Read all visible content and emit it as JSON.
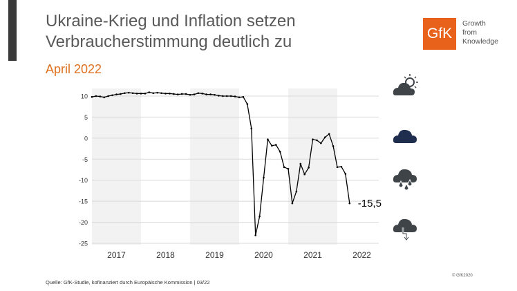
{
  "header": {
    "title_line1": "Ukraine-Krieg und Inflation setzen",
    "title_line2": "Verbraucherstimmung deutlich zu",
    "subtitle": "April 2022"
  },
  "logo": {
    "mark": "GfK",
    "tagline": [
      "Growth",
      "from",
      "Knowledge"
    ],
    "color": "#e8621c"
  },
  "icons": [
    "sun-cloud-icon",
    "cloud-icon",
    "rain-cloud-icon",
    "lightning-cloud-icon"
  ],
  "footer": {
    "source": "Quelle: GfK-Studie, kofinanziert durch Europäische Kommission | 03/22",
    "copyright": "© GfK2020"
  },
  "chart_data": {
    "type": "line",
    "title": "",
    "xlabel": "",
    "ylabel": "",
    "ylim": [
      -25,
      10
    ],
    "yticks": [
      "10",
      "5",
      "0",
      "-5",
      "-10",
      "-15",
      "-20",
      "-25"
    ],
    "years": [
      "2017",
      "2018",
      "2019",
      "2020",
      "2021",
      "2022"
    ],
    "shaded_years": [
      "2017",
      "2019",
      "2021"
    ],
    "grid": true,
    "x_start": "2017-01",
    "x_end": "2022-04",
    "frequency": "monthly",
    "values": [
      9.8,
      10.0,
      9.9,
      9.7,
      10.0,
      10.2,
      10.4,
      10.5,
      10.7,
      10.8,
      10.7,
      10.6,
      10.6,
      10.6,
      10.9,
      10.7,
      10.8,
      10.7,
      10.6,
      10.6,
      10.5,
      10.4,
      10.5,
      10.5,
      10.3,
      10.4,
      10.7,
      10.6,
      10.4,
      10.4,
      10.3,
      10.1,
      10.0,
      10.0,
      10.0,
      9.9,
      9.7,
      9.8,
      8.1,
      2.3,
      -23.1,
      -18.6,
      -9.4,
      -0.3,
      -1.8,
      -1.6,
      -3.2,
      -6.9,
      -7.3,
      -15.5,
      -12.7,
      -6.1,
      -8.6,
      -7.0,
      -0.3,
      -0.5,
      -1.2,
      0.2,
      1.0,
      -1.9,
      -6.9,
      -6.8,
      -8.5,
      -15.5
    ],
    "last_label": "-15,5",
    "line_color": "#000000",
    "band_color": "#f2f2f2"
  }
}
